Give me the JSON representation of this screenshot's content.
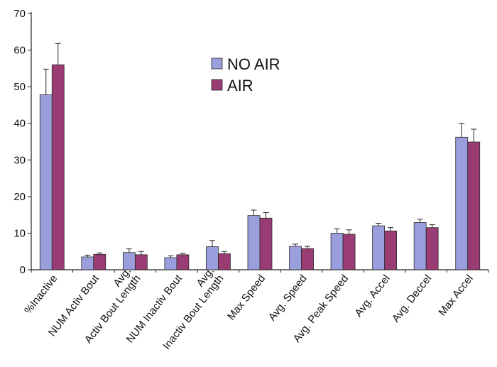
{
  "chart_data": {
    "type": "bar",
    "categories": [
      [
        "%Inactive"
      ],
      [
        "NUM Activ Bout"
      ],
      [
        "Avg.",
        "Activ Bout Length"
      ],
      [
        "NUM Inactiv Bout"
      ],
      [
        "Avg.",
        "Inactiv Bout Length"
      ],
      [
        "Max Speed"
      ],
      [
        "Avg. Speed"
      ],
      [
        "Avg. Peak Speed"
      ],
      [
        "Avg. Accel"
      ],
      [
        "Avg. Deccel"
      ],
      [
        "Max Accel"
      ]
    ],
    "series": [
      {
        "name": "NO AIR",
        "color": "#9b9edc",
        "values": [
          47.8,
          3.5,
          4.7,
          3.3,
          6.3,
          14.8,
          6.4,
          10.0,
          12.0,
          12.9,
          36.2
        ],
        "errors": [
          7.0,
          0.5,
          1.0,
          0.5,
          1.7,
          1.5,
          0.6,
          1.2,
          0.7,
          0.9,
          3.8
        ]
      },
      {
        "name": "AIR",
        "color": "#9a3c74",
        "values": [
          56.0,
          4.2,
          4.1,
          4.1,
          4.4,
          14.1,
          5.8,
          9.7,
          10.6,
          11.5,
          34.9
        ],
        "errors": [
          5.8,
          0.4,
          0.9,
          0.4,
          0.6,
          1.5,
          0.6,
          1.2,
          0.9,
          0.8,
          3.5
        ]
      }
    ],
    "ylim": [
      0,
      70
    ],
    "yticks": [
      0,
      10,
      20,
      30,
      40,
      50,
      60,
      70
    ],
    "title": "",
    "xlabel": "",
    "ylabel": "",
    "grid": false,
    "legend_position": "top-center"
  }
}
